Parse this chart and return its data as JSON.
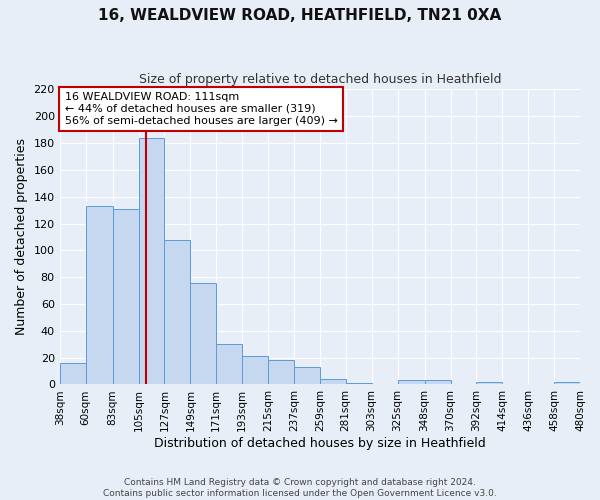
{
  "title": "16, WEALDVIEW ROAD, HEATHFIELD, TN21 0XA",
  "subtitle": "Size of property relative to detached houses in Heathfield",
  "xlabel": "Distribution of detached houses by size in Heathfield",
  "ylabel": "Number of detached properties",
  "bar_values": [
    16,
    133,
    131,
    184,
    108,
    76,
    30,
    21,
    18,
    13,
    4,
    1,
    0,
    3,
    3,
    0,
    2,
    0,
    0,
    2
  ],
  "bin_labels": [
    "38sqm",
    "60sqm",
    "83sqm",
    "105sqm",
    "127sqm",
    "149sqm",
    "171sqm",
    "193sqm",
    "215sqm",
    "237sqm",
    "259sqm",
    "281sqm",
    "303sqm",
    "325sqm",
    "348sqm",
    "370sqm",
    "392sqm",
    "414sqm",
    "436sqm",
    "458sqm",
    "480sqm"
  ],
  "bar_edges": [
    38,
    60,
    83,
    105,
    127,
    149,
    171,
    193,
    215,
    237,
    259,
    281,
    303,
    325,
    348,
    370,
    392,
    414,
    436,
    458,
    480
  ],
  "bar_color": "#c5d8f0",
  "bar_edge_color": "#5b9bd5",
  "vline_x": 111,
  "vline_color": "#c00000",
  "ylim": [
    0,
    220
  ],
  "yticks": [
    0,
    20,
    40,
    60,
    80,
    100,
    120,
    140,
    160,
    180,
    200,
    220
  ],
  "annotation_title": "16 WEALDVIEW ROAD: 111sqm",
  "annotation_line1": "← 44% of detached houses are smaller (319)",
  "annotation_line2": "56% of semi-detached houses are larger (409) →",
  "annotation_box_color": "#c00000",
  "footer1": "Contains HM Land Registry data © Crown copyright and database right 2024.",
  "footer2": "Contains public sector information licensed under the Open Government Licence v3.0.",
  "background_color": "#e8eef8",
  "grid_color": "#ffffff"
}
